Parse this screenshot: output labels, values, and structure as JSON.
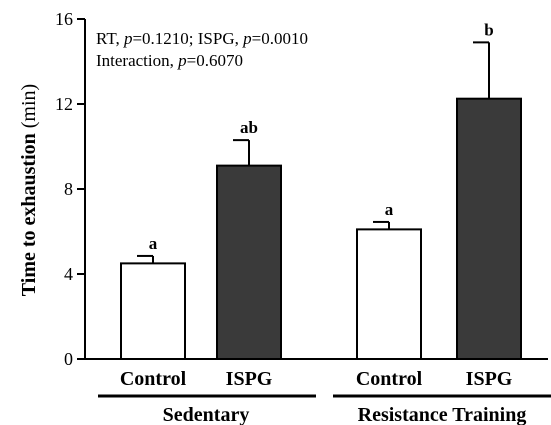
{
  "chart_data": {
    "type": "bar",
    "title": "",
    "ylabel": "Time to exhaustion",
    "ylabel_unit": "(min)",
    "ylim": [
      0,
      16
    ],
    "yticks": [
      0,
      4,
      8,
      12,
      16
    ],
    "annotations": {
      "line1": {
        "a": "RT, ",
        "b": "p",
        "c": "=0.1210; ISPG, ",
        "d": "p",
        "e": "=0.0010"
      },
      "line2": {
        "a": "Interaction, ",
        "b": "p",
        "c": "=0.6070"
      }
    },
    "groups": [
      {
        "label": "Sedentary"
      },
      {
        "label": "Resistance Training"
      }
    ],
    "bars": [
      {
        "group": 0,
        "label": "Control",
        "value": 4.5,
        "error": 0.35,
        "letter": "a",
        "color": "#ffffff"
      },
      {
        "group": 0,
        "label": "ISPG",
        "value": 9.1,
        "error": 1.2,
        "letter": "ab",
        "color": "#3a3a3a"
      },
      {
        "group": 1,
        "label": "Control",
        "value": 6.1,
        "error": 0.35,
        "letter": "a",
        "color": "#ffffff"
      },
      {
        "group": 1,
        "label": "ISPG",
        "value": 12.25,
        "error": 2.65,
        "letter": "b",
        "color": "#3a3a3a"
      }
    ],
    "grid": false,
    "legend": "none"
  }
}
